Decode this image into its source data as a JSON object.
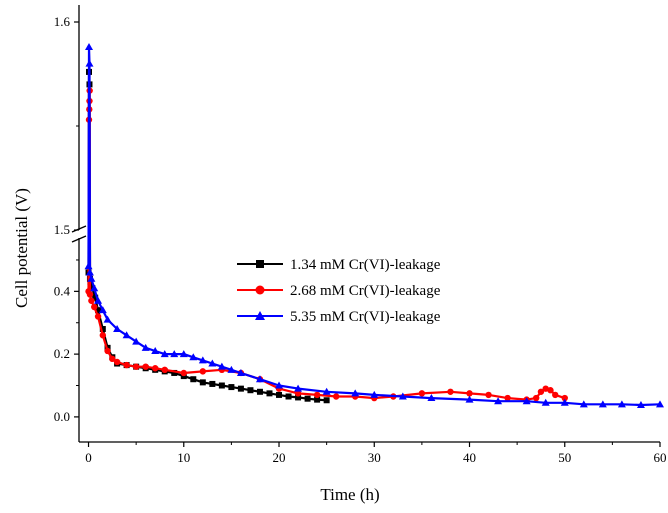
{
  "chart_data": {
    "type": "line",
    "title": "",
    "xlabel": "Time (h)",
    "ylabel": "Cell potential (V)",
    "xlim": [
      -1,
      60
    ],
    "ylim_lower": [
      -0.08,
      0.57
    ],
    "ylim_upper": [
      1.5,
      1.6
    ],
    "y_axis_break": true,
    "grid": false,
    "legend_position": "center",
    "x_ticks": [
      "0",
      "10",
      "20",
      "30",
      "40",
      "50",
      "60"
    ],
    "y_ticks_lower": [
      "0.0",
      "0.2",
      "0.4"
    ],
    "y_ticks_upper": [
      "1.5",
      "1.6"
    ],
    "series": [
      {
        "name": "1.34 mM Cr(VI)-leakage",
        "color": "#000000",
        "marker": "square",
        "x": [
          0,
          0.05,
          0.1,
          0.15,
          0.2,
          0.4,
          0.7,
          1,
          1.5,
          2,
          2.5,
          3,
          4,
          5,
          6,
          7,
          8,
          9,
          10,
          11,
          12,
          13,
          14,
          15,
          16,
          17,
          18,
          19,
          20,
          21,
          22,
          23,
          24,
          25
        ],
        "y": [
          0.46,
          1.576,
          1.57,
          0.44,
          0.43,
          0.41,
          0.38,
          0.34,
          0.28,
          0.22,
          0.19,
          0.17,
          0.165,
          0.16,
          0.155,
          0.15,
          0.145,
          0.14,
          0.13,
          0.12,
          0.11,
          0.105,
          0.1,
          0.095,
          0.09,
          0.085,
          0.08,
          0.075,
          0.07,
          0.065,
          0.062,
          0.058,
          0.055,
          0.053
        ]
      },
      {
        "name": "2.68 mM Cr(VI)-leakage",
        "color": "#ff0000",
        "marker": "circle",
        "x": [
          0,
          0.05,
          0.08,
          0.1,
          0.12,
          0.15,
          0.3,
          0.6,
          1,
          1.5,
          2,
          2.5,
          3,
          4,
          5,
          6,
          7,
          8,
          10,
          12,
          14,
          16,
          18,
          20,
          22,
          24,
          26,
          28,
          30,
          32,
          35,
          38,
          40,
          42,
          44,
          46,
          47,
          47.5,
          48,
          48.5,
          49,
          50
        ],
        "y": [
          0.4,
          1.553,
          1.558,
          1.562,
          1.567,
          0.39,
          0.37,
          0.35,
          0.32,
          0.26,
          0.21,
          0.185,
          0.175,
          0.165,
          0.16,
          0.16,
          0.155,
          0.15,
          0.14,
          0.145,
          0.15,
          0.14,
          0.12,
          0.09,
          0.075,
          0.07,
          0.065,
          0.065,
          0.06,
          0.065,
          0.075,
          0.08,
          0.075,
          0.07,
          0.06,
          0.055,
          0.06,
          0.08,
          0.09,
          0.085,
          0.07,
          0.06
        ]
      },
      {
        "name": "5.35 mM Cr(VI)-leakage",
        "color": "#0000ff",
        "marker": "triangle",
        "x": [
          0,
          0.05,
          0.1,
          0.15,
          0.3,
          0.6,
          1,
          1.5,
          2,
          3,
          4,
          5,
          6,
          7,
          8,
          9,
          10,
          11,
          12,
          13,
          14,
          15,
          16,
          18,
          20,
          22,
          25,
          28,
          30,
          33,
          36,
          40,
          43,
          46,
          48,
          50,
          52,
          54,
          56,
          58,
          60
        ],
        "y": [
          0.48,
          1.588,
          1.58,
          0.46,
          0.44,
          0.41,
          0.37,
          0.34,
          0.31,
          0.28,
          0.26,
          0.24,
          0.22,
          0.21,
          0.2,
          0.2,
          0.2,
          0.19,
          0.18,
          0.17,
          0.16,
          0.15,
          0.14,
          0.12,
          0.1,
          0.09,
          0.08,
          0.075,
          0.07,
          0.065,
          0.06,
          0.055,
          0.05,
          0.05,
          0.045,
          0.045,
          0.04,
          0.04,
          0.04,
          0.038,
          0.04
        ]
      }
    ]
  }
}
